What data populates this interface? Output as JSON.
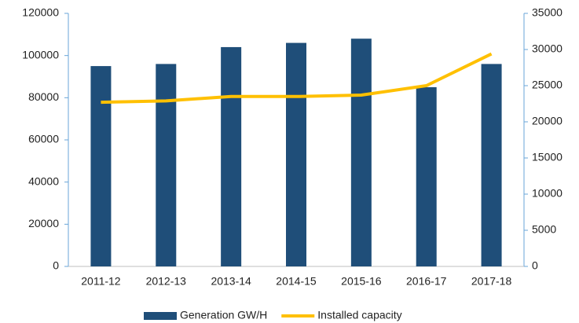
{
  "chart_data": {
    "type": "bar_line",
    "categories": [
      "2011-12",
      "2012-13",
      "2013-14",
      "2014-15",
      "2015-16",
      "2016-17",
      "2017-18"
    ],
    "series": [
      {
        "name": "Generation GW/H",
        "color": "#1f4e79",
        "type": "bar",
        "axis": "y",
        "values": [
          95000,
          96000,
          104000,
          106000,
          108000,
          85000,
          96000
        ]
      },
      {
        "name": "Installed capacity",
        "color": "#ffc000",
        "type": "line",
        "axis": "y2",
        "values": [
          22700,
          22900,
          23500,
          23500,
          23700,
          25000,
          29400
        ]
      }
    ],
    "ylim": [
      0,
      120000
    ],
    "yticks": [
      0,
      20000,
      40000,
      60000,
      80000,
      100000,
      120000
    ],
    "y2lim": [
      0,
      35000
    ],
    "y2ticks": [
      0,
      5000,
      10000,
      15000,
      20000,
      25000,
      30000,
      35000
    ],
    "grid": false,
    "legend": "bottom"
  }
}
